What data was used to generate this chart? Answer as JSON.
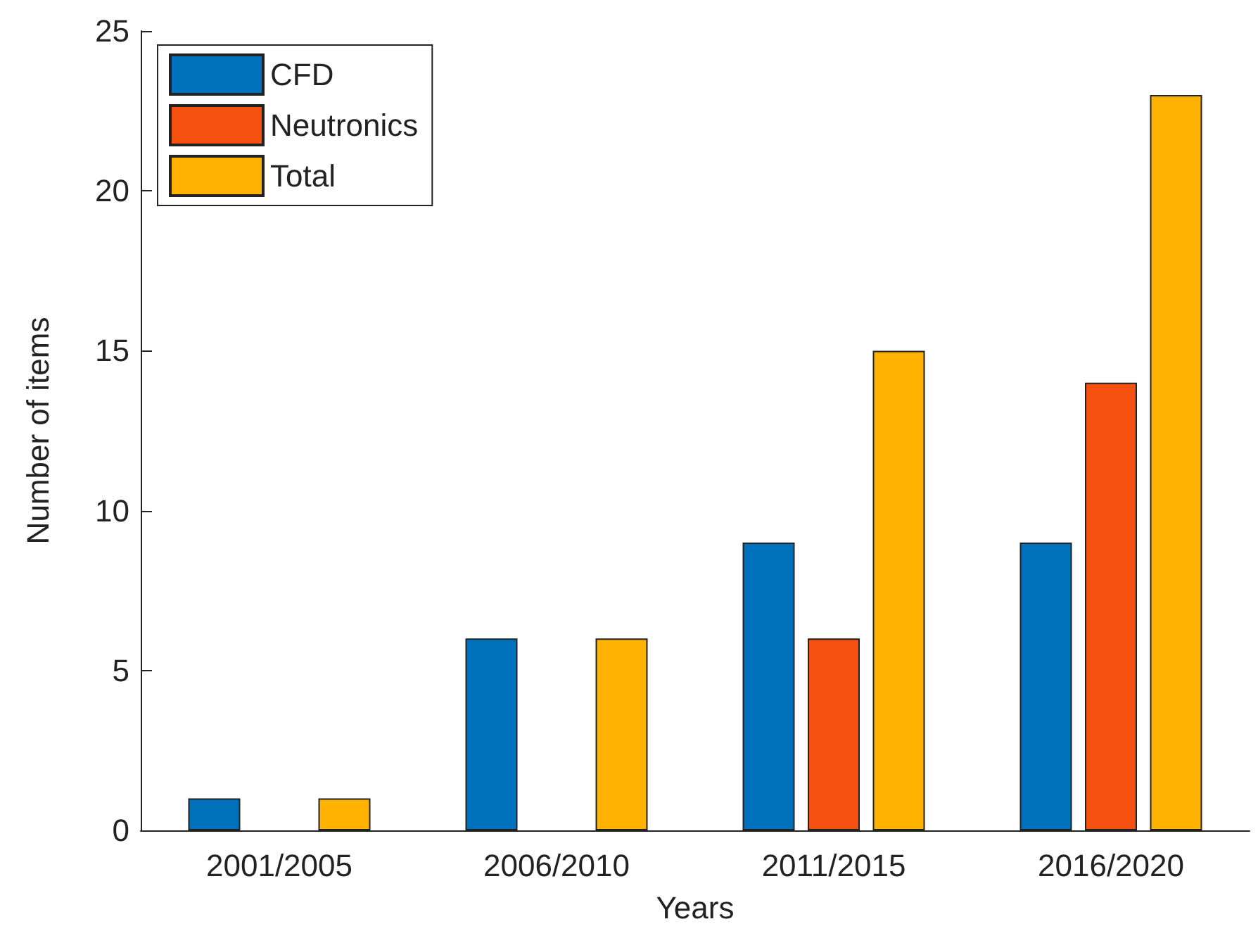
{
  "chart_data": {
    "type": "bar",
    "xlabel": "Years",
    "ylabel": "Number of items",
    "categories": [
      "2001/2005",
      "2006/2010",
      "2011/2015",
      "2016/2020"
    ],
    "series": [
      {
        "name": "CFD",
        "color": "#0072bd",
        "values": [
          1,
          6,
          9,
          9
        ]
      },
      {
        "name": "Neutronics",
        "color": "#f5500f",
        "values": [
          null,
          null,
          6,
          14
        ]
      },
      {
        "name": "Total",
        "color": "#ffb300",
        "values": [
          1,
          6,
          15,
          23
        ]
      }
    ],
    "ylim": [
      0,
      25
    ],
    "yticks": [
      0,
      5,
      10,
      15,
      20,
      25
    ],
    "grid": false,
    "legend": "top left"
  }
}
